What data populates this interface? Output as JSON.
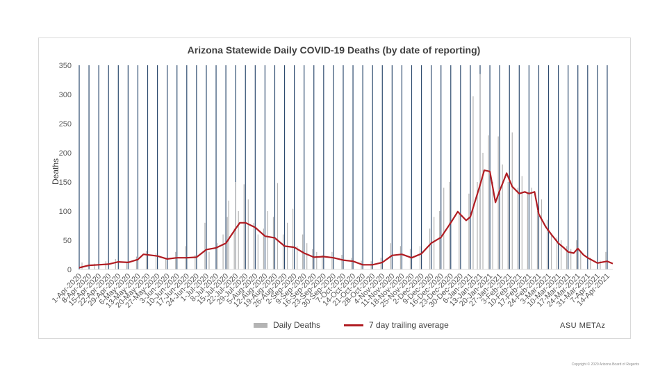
{
  "chart_data": {
    "type": "bar+line",
    "title": "Arizona Statewide Daily COVID-19 Deaths (by date of reporting)",
    "ylabel": "Deaths",
    "xlabel": "",
    "ylim": [
      0,
      350
    ],
    "yticks": [
      0,
      50,
      100,
      150,
      200,
      250,
      300,
      350
    ],
    "x_start": "2020-04-01",
    "x_end": "2021-04-18",
    "x_tick_labels": [
      "1-Apr-2020",
      "8-Apr-2020",
      "15-Apr-2020",
      "22-Apr-2020",
      "29-Apr-2020",
      "6-May-2020",
      "13-May-2020",
      "20-May-2020",
      "27-May-2020",
      "3-Jun-2020",
      "10-Jun-2020",
      "17-Jun-2020",
      "24-Jun-2020",
      "1-Jul-2020",
      "8-Jul-2020",
      "15-Jul-2020",
      "22-Jul-2020",
      "29-Jul-2020",
      "5-Aug-2020",
      "12-Aug-2020",
      "19-Aug-2020",
      "26-Aug-2020",
      "2-Sep-2020",
      "9-Sep-2020",
      "16-Sep-2020",
      "23-Sep-2020",
      "30-Sep-2020",
      "7-Oct-2020",
      "14-Oct-2020",
      "21-Oct-2020",
      "28-Oct-2020",
      "4-Nov-2020",
      "11-Nov-2020",
      "18-Nov-2020",
      "25-Nov-2020",
      "2-Dec-2020",
      "9-Dec-2020",
      "16-Dec-2020",
      "23-Dec-2020",
      "30-Dec-2020",
      "6-Jan-2021",
      "13-Jan-2021",
      "20-Jan-2021",
      "27-Jan-2021",
      "3-Feb-2021",
      "10-Feb-2021",
      "17-Feb-2021",
      "24-Feb-2021",
      "3-Mar-2021",
      "10-Mar-2021",
      "17-Mar-2021",
      "24-Mar-2021",
      "31-Mar-2021",
      "7-Apr-2021",
      "14-Apr-2021"
    ],
    "legend": [
      "Daily Deaths",
      "7 day trailing average"
    ],
    "legend_position": "bottom",
    "series": [
      {
        "name": "7 day trailing average",
        "type": "line",
        "color": "#b01c22",
        "points": [
          [
            "2020-04-01",
            3
          ],
          [
            "2020-04-08",
            7
          ],
          [
            "2020-04-15",
            8
          ],
          [
            "2020-04-22",
            9
          ],
          [
            "2020-04-29",
            13
          ],
          [
            "2020-05-06",
            12
          ],
          [
            "2020-05-13",
            17
          ],
          [
            "2020-05-17",
            26
          ],
          [
            "2020-05-27",
            23
          ],
          [
            "2020-06-03",
            18
          ],
          [
            "2020-06-10",
            20
          ],
          [
            "2020-06-17",
            20
          ],
          [
            "2020-06-24",
            21
          ],
          [
            "2020-07-01",
            34
          ],
          [
            "2020-07-08",
            37
          ],
          [
            "2020-07-15",
            45
          ],
          [
            "2020-07-22",
            70
          ],
          [
            "2020-07-25",
            80
          ],
          [
            "2020-07-29",
            80
          ],
          [
            "2020-08-05",
            72
          ],
          [
            "2020-08-12",
            57
          ],
          [
            "2020-08-19",
            54
          ],
          [
            "2020-08-26",
            40
          ],
          [
            "2020-09-02",
            38
          ],
          [
            "2020-09-09",
            28
          ],
          [
            "2020-09-16",
            21
          ],
          [
            "2020-09-23",
            22
          ],
          [
            "2020-09-30",
            20
          ],
          [
            "2020-10-07",
            16
          ],
          [
            "2020-10-14",
            14
          ],
          [
            "2020-10-21",
            8
          ],
          [
            "2020-10-28",
            8
          ],
          [
            "2020-11-04",
            12
          ],
          [
            "2020-11-11",
            24
          ],
          [
            "2020-11-18",
            26
          ],
          [
            "2020-11-25",
            20
          ],
          [
            "2020-12-02",
            27
          ],
          [
            "2020-12-09",
            45
          ],
          [
            "2020-12-16",
            55
          ],
          [
            "2020-12-23",
            80
          ],
          [
            "2020-12-28",
            99
          ],
          [
            "2021-01-03",
            84
          ],
          [
            "2021-01-06",
            90
          ],
          [
            "2021-01-13",
            145
          ],
          [
            "2021-01-16",
            170
          ],
          [
            "2021-01-20",
            168
          ],
          [
            "2021-01-24",
            115
          ],
          [
            "2021-01-27",
            135
          ],
          [
            "2021-02-01",
            165
          ],
          [
            "2021-02-05",
            142
          ],
          [
            "2021-02-10",
            130
          ],
          [
            "2021-02-14",
            133
          ],
          [
            "2021-02-17",
            130
          ],
          [
            "2021-02-21",
            133
          ],
          [
            "2021-02-24",
            95
          ],
          [
            "2021-03-01",
            73
          ],
          [
            "2021-03-06",
            57
          ],
          [
            "2021-03-10",
            45
          ],
          [
            "2021-03-14",
            37
          ],
          [
            "2021-03-17",
            30
          ],
          [
            "2021-03-21",
            28
          ],
          [
            "2021-03-24",
            36
          ],
          [
            "2021-03-28",
            25
          ],
          [
            "2021-03-31",
            20
          ],
          [
            "2021-04-07",
            11
          ],
          [
            "2021-04-14",
            14
          ],
          [
            "2021-04-18",
            10
          ]
        ]
      },
      {
        "name": "Daily Deaths",
        "type": "bar",
        "color": "#b4b4b4",
        "values": [
          [
            "2020-04-03",
            12
          ],
          [
            "2020-04-12",
            10
          ],
          [
            "2020-04-20",
            14
          ],
          [
            "2020-04-27",
            18
          ],
          [
            "2020-05-05",
            12
          ],
          [
            "2020-05-12",
            22
          ],
          [
            "2020-05-19",
            32
          ],
          [
            "2020-05-26",
            28
          ],
          [
            "2020-06-02",
            20
          ],
          [
            "2020-06-09",
            30
          ],
          [
            "2020-06-16",
            40
          ],
          [
            "2020-06-23",
            25
          ],
          [
            "2020-06-30",
            80
          ],
          [
            "2020-07-03",
            30
          ],
          [
            "2020-07-09",
            45
          ],
          [
            "2020-07-13",
            60
          ],
          [
            "2020-07-16",
            90
          ],
          [
            "2020-07-17",
            118
          ],
          [
            "2020-07-21",
            70
          ],
          [
            "2020-07-22",
            150
          ],
          [
            "2020-07-24",
            100
          ],
          [
            "2020-07-28",
            146
          ],
          [
            "2020-07-31",
            120
          ],
          [
            "2020-08-04",
            80
          ],
          [
            "2020-08-07",
            60
          ],
          [
            "2020-08-11",
            70
          ],
          [
            "2020-08-14",
            100
          ],
          [
            "2020-08-18",
            90
          ],
          [
            "2020-08-21",
            148
          ],
          [
            "2020-08-25",
            60
          ],
          [
            "2020-08-28",
            80
          ],
          [
            "2020-09-01",
            104
          ],
          [
            "2020-09-04",
            40
          ],
          [
            "2020-09-08",
            60
          ],
          [
            "2020-09-11",
            45
          ],
          [
            "2020-09-15",
            35
          ],
          [
            "2020-09-18",
            30
          ],
          [
            "2020-09-22",
            25
          ],
          [
            "2020-09-29",
            30
          ],
          [
            "2020-10-06",
            25
          ],
          [
            "2020-10-13",
            20
          ],
          [
            "2020-10-20",
            15
          ],
          [
            "2020-10-27",
            14
          ],
          [
            "2020-11-03",
            20
          ],
          [
            "2020-11-10",
            45
          ],
          [
            "2020-11-17",
            40
          ],
          [
            "2020-11-24",
            35
          ],
          [
            "2020-12-01",
            40
          ],
          [
            "2020-12-08",
            70
          ],
          [
            "2020-12-11",
            90
          ],
          [
            "2020-12-15",
            100
          ],
          [
            "2020-12-18",
            140
          ],
          [
            "2020-12-22",
            150
          ],
          [
            "2020-12-29",
            98
          ],
          [
            "2021-01-05",
            130
          ],
          [
            "2021-01-08",
            297
          ],
          [
            "2021-01-11",
            150
          ],
          [
            "2021-01-13",
            335
          ],
          [
            "2021-01-15",
            200
          ],
          [
            "2021-01-19",
            230
          ],
          [
            "2021-01-22",
            150
          ],
          [
            "2021-01-26",
            228
          ],
          [
            "2021-01-29",
            180
          ],
          [
            "2021-02-02",
            150
          ],
          [
            "2021-02-05",
            235
          ],
          [
            "2021-02-09",
            140
          ],
          [
            "2021-02-12",
            160
          ],
          [
            "2021-02-16",
            130
          ],
          [
            "2021-02-19",
            140
          ],
          [
            "2021-02-23",
            100
          ],
          [
            "2021-02-26",
            120
          ],
          [
            "2021-03-02",
            85
          ],
          [
            "2021-03-05",
            60
          ],
          [
            "2021-03-09",
            55
          ],
          [
            "2021-03-12",
            50
          ],
          [
            "2021-03-16",
            40
          ],
          [
            "2021-03-19",
            35
          ],
          [
            "2021-03-23",
            50
          ],
          [
            "2021-03-26",
            30
          ],
          [
            "2021-04-02",
            20
          ],
          [
            "2021-04-09",
            15
          ],
          [
            "2021-04-13",
            30
          ]
        ]
      }
    ]
  },
  "watermark": "ASU METAz",
  "copyright": "Copyright © 2020 Arizona Board of Regents",
  "colors": {
    "line": "#b01c22",
    "bars": "#b4b4b4",
    "vlines": "#2c4a6e",
    "axis_text": "#595959"
  }
}
